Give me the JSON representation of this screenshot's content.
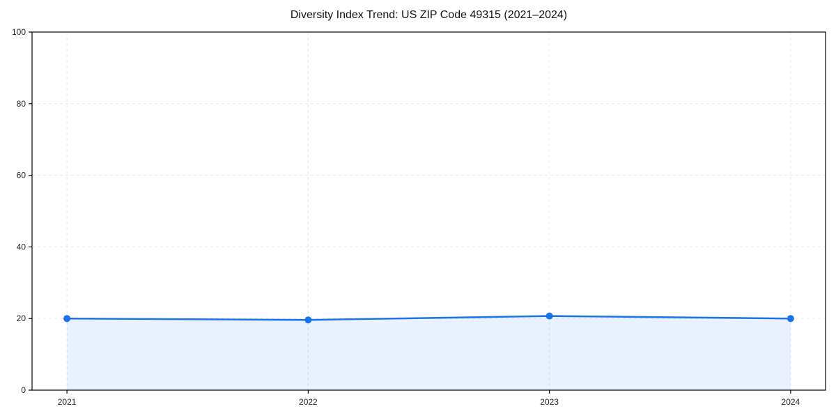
{
  "chart_data": {
    "type": "area",
    "title": "Diversity Index Trend: US ZIP Code 49315 (2021–2024)",
    "x": [
      "2021",
      "2022",
      "2023",
      "2024"
    ],
    "series": [
      {
        "name": "Diversity Index",
        "values": [
          20.0,
          19.6,
          20.7,
          20.0
        ]
      }
    ],
    "xlabel": "",
    "ylabel": "",
    "ylim": [
      0,
      100
    ],
    "yticks": [
      0,
      20,
      40,
      60,
      80,
      100
    ],
    "grid": true,
    "grid_style": "dashed",
    "legend": false,
    "colors": {
      "line": "#1a73e8",
      "marker": "#1a73e8",
      "fill": "rgba(26,115,232,0.10)",
      "grid": "#e5e5e5",
      "spine": "#000000",
      "tick_label": "#222222",
      "background": "#ffffff"
    }
  }
}
